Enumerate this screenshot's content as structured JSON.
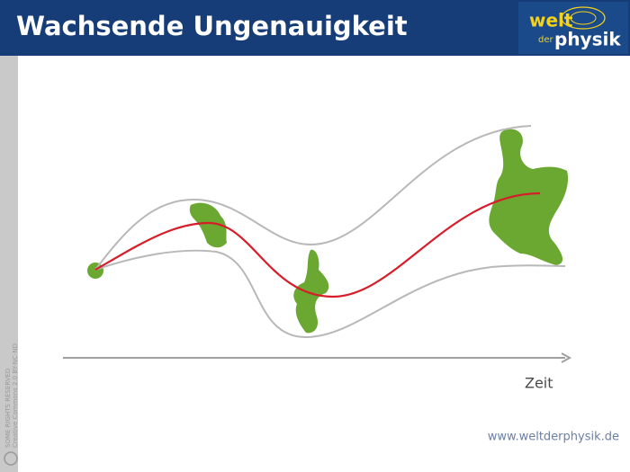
{
  "header": {
    "title": "Wachsende Ungenauigkeit"
  },
  "logo": {
    "top": "welt",
    "middle": "der",
    "bottom": "physik"
  },
  "axis": {
    "label": "Zeit"
  },
  "license": {
    "line1": "SOME RIGHTS RESERVED",
    "line2": "Creative Commons 2.0 BY-NC-ND"
  },
  "footer": {
    "url": "www.weltderphysik.de"
  }
}
